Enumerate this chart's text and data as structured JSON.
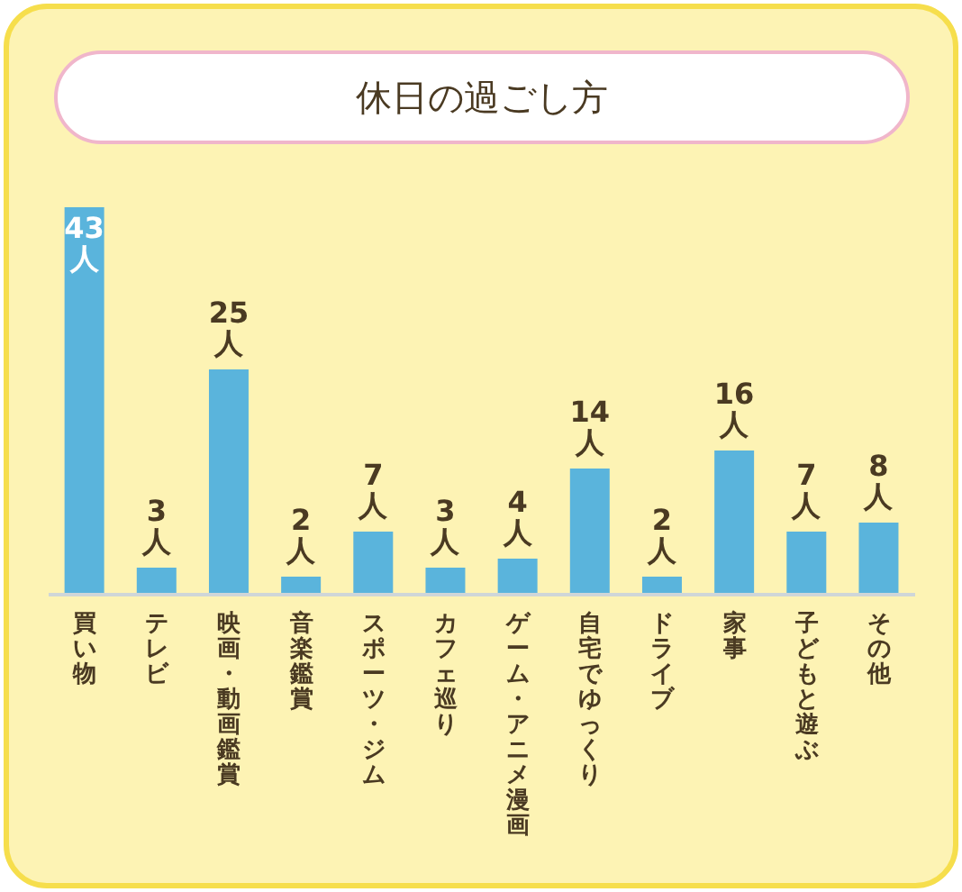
{
  "chart_data": {
    "type": "bar",
    "title": "休日の過ごし方",
    "categories": [
      "買い物",
      "テレビ",
      "映画・動画鑑賞",
      "音楽鑑賞",
      "スポーツ・ジム",
      "カフェ巡り",
      "ゲーム・アニメ漫画",
      "自宅でゆっくり",
      "ドライブ",
      "家事",
      "子どもと遊ぶ",
      "その他"
    ],
    "values": [
      43,
      3,
      25,
      2,
      7,
      3,
      4,
      14,
      2,
      16,
      7,
      8
    ],
    "value_labels": [
      "43人",
      "3人",
      "25人",
      "2人",
      "7人",
      "3人",
      "4人",
      "14人",
      "2人",
      "16人",
      "7人",
      "8人"
    ],
    "color": "#5ab4dc"
  }
}
